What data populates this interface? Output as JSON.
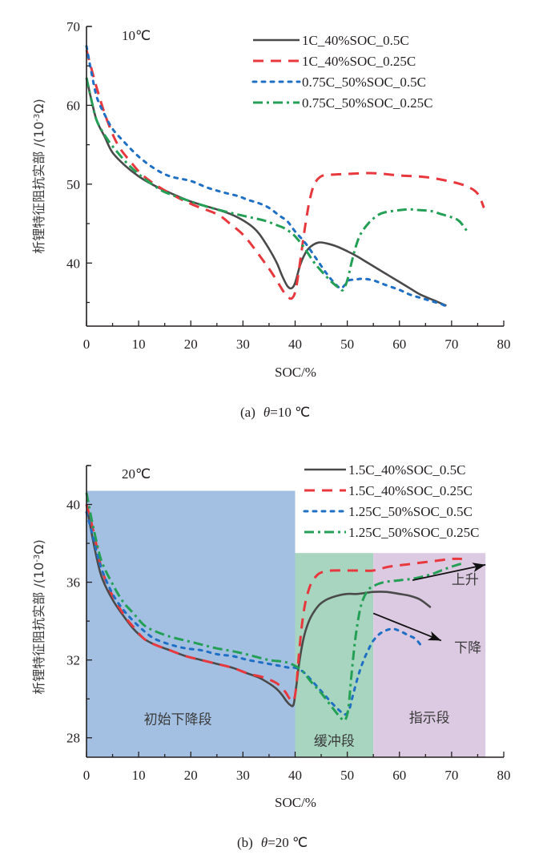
{
  "chart_data": [
    {
      "type": "line",
      "panel": "a",
      "temperature_label": "10℃",
      "caption_prefix": "(a)",
      "caption_theta": "θ",
      "caption_value": "=10 ℃",
      "xlabel": "SOC/%",
      "ylabel": "析锂特征阻抗实部 /(10",
      "ylabel_exp": "-3",
      "ylabel_unit": "Ω)",
      "xlim": [
        0,
        80
      ],
      "ylim": [
        32,
        70
      ],
      "x_ticks": [
        0,
        10,
        20,
        30,
        40,
        50,
        60,
        70,
        80
      ],
      "y_ticks": [
        40,
        50,
        60,
        70
      ],
      "legend_position": "top-right",
      "series": [
        {
          "name": "1C_40%SOC_0.5C",
          "color": "#4a4a4a",
          "style": "solid",
          "x": [
            0,
            1,
            2,
            3.5,
            5,
            7.5,
            10,
            12.5,
            15,
            20,
            25,
            28,
            31,
            33,
            35,
            36.5,
            37.5,
            38.5,
            39.3,
            40,
            41,
            42,
            43,
            44.5,
            46,
            48,
            50,
            52,
            54,
            57,
            60,
            62,
            64,
            66.5,
            69
          ],
          "y": [
            63.5,
            60.5,
            58,
            56,
            54,
            52.3,
            51,
            50,
            49.2,
            47.8,
            46.8,
            46.1,
            45,
            43.8,
            41.8,
            40,
            38.4,
            37.1,
            36.8,
            37.5,
            39.8,
            41.3,
            42.1,
            42.6,
            42.5,
            42.1,
            41.5,
            40.8,
            40,
            38.8,
            37.6,
            36.8,
            36,
            35.3,
            34.6
          ]
        },
        {
          "name": "1C_40%SOC_0.25C",
          "color": "#e8383d",
          "style": "dashed",
          "x": [
            0,
            1,
            2.5,
            4,
            6,
            8.5,
            11,
            15,
            20,
            25,
            27.5,
            30,
            32,
            34,
            35.5,
            37,
            38.3,
            39.3,
            40,
            40.6,
            41.3,
            42,
            42.8,
            43.7,
            45,
            47,
            50,
            55,
            60,
            65,
            70,
            73,
            75,
            76.2
          ],
          "y": [
            67,
            64.5,
            61,
            58,
            55,
            52.8,
            51,
            49.2,
            47.5,
            46.2,
            45,
            43.6,
            42,
            40.2,
            38.8,
            37.2,
            35.9,
            35.5,
            36.3,
            38.5,
            41.8,
            45,
            48,
            50,
            51,
            51.2,
            51.3,
            51.4,
            51.1,
            50.9,
            50.3,
            49.7,
            48.8,
            47
          ]
        },
        {
          "name": "0.75C_50%SOC_0.5C",
          "color": "#1f6fc5",
          "style": "dotted",
          "x": [
            0,
            1,
            2,
            3.5,
            5,
            7,
            10,
            13,
            16,
            20,
            23,
            26,
            29,
            31,
            33,
            35,
            37,
            38.5,
            40,
            42,
            44,
            46,
            47.5,
            48.7,
            49.5,
            50.3,
            51.5,
            53,
            55,
            57,
            60,
            62,
            64,
            66,
            68,
            69
          ],
          "y": [
            67.5,
            64,
            61,
            58.8,
            57,
            55.5,
            53.5,
            52,
            51,
            50.4,
            49.6,
            49,
            48.5,
            48,
            47.6,
            47,
            46,
            45.3,
            44,
            42.5,
            40.6,
            38.7,
            37.5,
            36.8,
            37.2,
            37.8,
            37.9,
            38,
            37.8,
            37.3,
            36.6,
            36,
            35.6,
            35.2,
            34.8,
            34.5
          ]
        },
        {
          "name": "0.75C_50%SOC_0.25C",
          "color": "#23a055",
          "style": "dashdot",
          "x": [
            0,
            1,
            2,
            4,
            6,
            8,
            10.5,
            13,
            15,
            20,
            25,
            30,
            34,
            36.5,
            38,
            39.5,
            40.5,
            42,
            43.5,
            45,
            47,
            48.5,
            49.2,
            50,
            50.8,
            51.6,
            52.5,
            54,
            55.5,
            57,
            60,
            62,
            64,
            66,
            68,
            70,
            71.5,
            73
          ],
          "y": [
            63.5,
            60.5,
            58,
            55.7,
            54,
            52.5,
            51,
            49.8,
            49,
            47.8,
            46.8,
            46,
            45.4,
            44.8,
            44.4,
            43.7,
            43,
            41.7,
            40.2,
            39,
            37.6,
            36.8,
            36.6,
            37.8,
            40,
            42,
            43.6,
            45,
            45.9,
            46.4,
            46.7,
            46.8,
            46.7,
            46.6,
            46.2,
            45.8,
            45.3,
            44
          ]
        }
      ]
    },
    {
      "type": "line",
      "panel": "b",
      "temperature_label": "20℃",
      "caption_prefix": "(b)",
      "caption_theta": "θ",
      "caption_value": "=20 ℃",
      "xlabel": "SOC/%",
      "ylabel": "析锂特征阻抗实部 /(10",
      "ylabel_exp": "-3",
      "ylabel_unit": "Ω)",
      "xlim": [
        0,
        80
      ],
      "ylim": [
        27,
        42
      ],
      "x_ticks": [
        0,
        10,
        20,
        30,
        40,
        50,
        60,
        70,
        80
      ],
      "y_ticks": [
        28,
        32,
        36,
        40
      ],
      "legend_position": "top-right",
      "regions": [
        {
          "label": "初始下降段",
          "x_range": [
            0,
            40
          ],
          "y_top": 40.7,
          "color": "#a3c0e3"
        },
        {
          "label": "缓冲段",
          "x_range": [
            40,
            55
          ],
          "y_top": 37.5,
          "color": "#a7d5bf"
        },
        {
          "label": "指示段",
          "x_range": [
            55,
            76.5
          ],
          "y_top": 37.5,
          "color": "#dcc9e2"
        }
      ],
      "annotations": [
        {
          "label": "上升",
          "from": [
            62.5,
            36.1
          ],
          "to": [
            76.5,
            36.9
          ]
        },
        {
          "label": "下降",
          "from": [
            55,
            34.4
          ],
          "to": [
            68,
            33
          ]
        }
      ],
      "series": [
        {
          "name": "1.5C_40%SOC_0.5C",
          "color": "#4a4a4a",
          "style": "solid",
          "x": [
            0,
            1,
            2,
            3,
            5,
            7,
            9,
            11,
            13,
            16,
            19,
            22,
            25,
            28,
            31,
            33,
            35,
            36.5,
            37.5,
            38.3,
            39,
            39.7,
            40.2,
            40.7,
            41.3,
            42,
            43,
            44.5,
            46,
            48,
            50,
            52,
            55,
            57.5,
            60,
            62,
            64,
            66
          ],
          "y": [
            40,
            38.5,
            37.2,
            36.2,
            35.1,
            34.3,
            33.6,
            33.1,
            32.8,
            32.5,
            32.2,
            32,
            31.8,
            31.6,
            31.3,
            31.1,
            30.8,
            30.5,
            30.2,
            29.9,
            29.7,
            29.7,
            30.6,
            31.7,
            32.7,
            33.5,
            34.2,
            34.8,
            35.1,
            35.3,
            35.4,
            35.4,
            35.5,
            35.5,
            35.4,
            35.3,
            35.1,
            34.7
          ]
        },
        {
          "name": "1.5C_40%SOC_0.25C",
          "color": "#e8383d",
          "style": "dashed",
          "x": [
            0,
            1,
            2,
            3,
            5,
            7.5,
            9,
            11,
            13,
            16,
            19,
            22,
            25,
            28,
            31,
            34,
            36.5,
            38,
            39,
            39.7,
            40.2,
            40.7,
            41.3,
            42,
            43,
            44,
            45,
            47,
            50,
            53,
            55,
            58,
            61,
            64,
            67,
            70,
            72
          ],
          "y": [
            40,
            39,
            37.8,
            36.6,
            35.3,
            34.2,
            33.7,
            33.1,
            32.8,
            32.5,
            32.2,
            32,
            31.8,
            31.6,
            31.3,
            31.1,
            30.8,
            30.4,
            30,
            29.9,
            30.6,
            32.2,
            33.8,
            35,
            35.9,
            36.3,
            36.5,
            36.6,
            36.6,
            36.6,
            36.6,
            36.8,
            36.9,
            37,
            37.1,
            37.2,
            37.2
          ]
        },
        {
          "name": "1.25C_50%SOC_0.5C",
          "color": "#1f6fc5",
          "style": "dotted",
          "x": [
            0,
            1,
            2,
            3,
            5,
            7,
            9,
            11,
            13,
            16,
            19,
            22,
            25,
            28,
            31,
            35,
            37,
            39,
            40,
            41.5,
            43,
            45,
            47,
            48.5,
            49.5,
            50.3,
            51,
            52,
            53,
            54,
            55,
            56.5,
            58.5,
            60,
            61.5,
            63,
            64
          ],
          "y": [
            39.6,
            38.6,
            37.5,
            36.6,
            35.4,
            34.6,
            34,
            33.5,
            33.1,
            32.8,
            32.6,
            32.5,
            32.3,
            32.2,
            32,
            31.8,
            31.7,
            31.6,
            31.6,
            31.4,
            31,
            30.4,
            29.8,
            29.4,
            29.2,
            29.4,
            30.1,
            31.1,
            31.9,
            32.5,
            33,
            33.4,
            33.6,
            33.5,
            33.3,
            33.1,
            32.8
          ]
        },
        {
          "name": "1.25C_50%SOC_0.25C",
          "color": "#23a055",
          "style": "dashdot",
          "x": [
            0,
            1,
            2,
            3,
            5,
            7,
            9,
            11,
            13,
            16,
            19,
            22,
            25,
            29,
            32,
            35,
            38,
            40,
            41.5,
            43,
            45,
            47,
            48.5,
            49.5,
            50.2,
            50.8,
            51.5,
            52.3,
            53,
            54,
            55,
            57,
            60,
            63,
            66,
            68,
            70,
            72.5
          ],
          "y": [
            40.6,
            39.2,
            38,
            37,
            35.9,
            35,
            34.4,
            33.8,
            33.5,
            33.2,
            33,
            32.8,
            32.6,
            32.4,
            32.2,
            32,
            31.9,
            31.7,
            31.4,
            30.9,
            30.3,
            29.6,
            29.1,
            28.9,
            29.5,
            31.2,
            33,
            34.4,
            35.1,
            35.6,
            35.8,
            36,
            36.1,
            36.2,
            36.4,
            36.6,
            36.8,
            37
          ]
        }
      ]
    }
  ]
}
